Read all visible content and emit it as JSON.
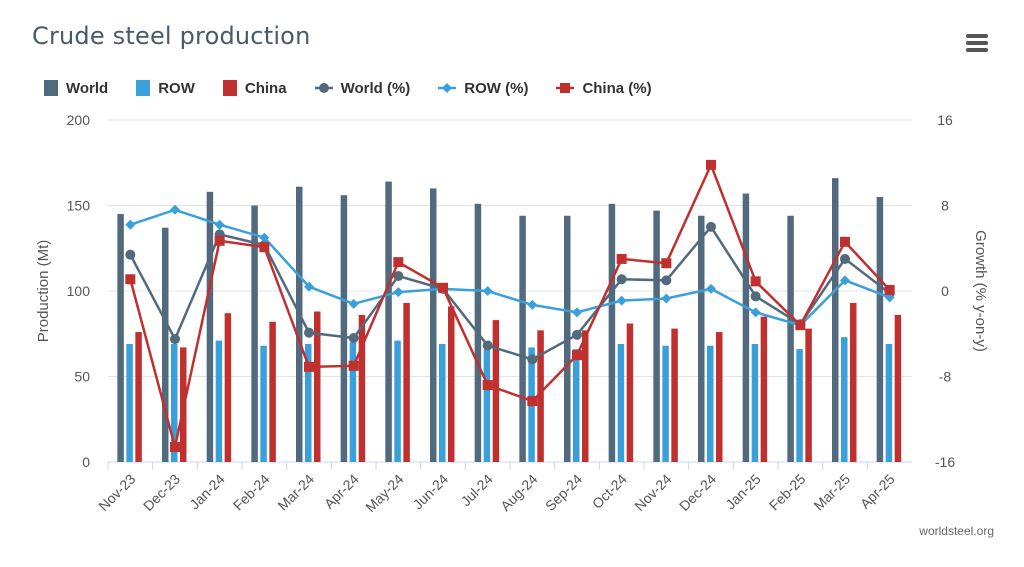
{
  "title": "Crude steel production",
  "credit": "worldsteel.org",
  "menu_icon": "hamburger-menu-icon",
  "colors": {
    "world": "#526a7e",
    "row": "#3aa0dc",
    "china": "#c0302e",
    "grid": "#e4e4e4",
    "axis_text": "#555555"
  },
  "chart_data": {
    "type": "bar",
    "title": "Crude steel production",
    "categories": [
      "Nov-23",
      "Dec-23",
      "Jan-24",
      "Feb-24",
      "Mar-24",
      "Apr-24",
      "May-24",
      "Jun-24",
      "Jul-24",
      "Aug-24",
      "Sep-24",
      "Oct-24",
      "Nov-24",
      "Dec-24",
      "Jan-25",
      "Feb-25",
      "Mar-25",
      "Apr-25"
    ],
    "ylabel": "Production (Mt)",
    "ylim": [
      0,
      200
    ],
    "yticks": [
      0,
      50,
      100,
      150,
      200
    ],
    "y2label": "Growth (% y-on-y)",
    "y2lim": [
      -16,
      16
    ],
    "y2ticks": [
      -16,
      -8,
      0,
      8,
      16
    ],
    "grid": true,
    "legend_position": "top-left",
    "series": [
      {
        "name": "World",
        "kind": "bar",
        "axis": "left",
        "values": [
          145,
          137,
          158,
          150,
          161,
          156,
          164,
          160,
          151,
          144,
          144,
          151,
          147,
          144,
          157,
          144,
          166,
          155
        ]
      },
      {
        "name": "ROW",
        "kind": "bar",
        "axis": "left",
        "values": [
          69,
          69,
          71,
          68,
          69,
          70,
          71,
          69,
          66,
          67,
          66,
          69,
          68,
          68,
          69,
          66,
          73,
          69
        ]
      },
      {
        "name": "China",
        "kind": "bar",
        "axis": "left",
        "values": [
          76,
          67,
          87,
          82,
          88,
          86,
          93,
          91,
          83,
          77,
          77,
          81,
          78,
          76,
          85,
          78,
          93,
          86
        ]
      },
      {
        "name": "World (%)",
        "kind": "line",
        "marker": "circle",
        "axis": "right",
        "values": [
          3.4,
          -4.5,
          5.3,
          4.3,
          -3.9,
          -4.4,
          1.4,
          0.2,
          -5.1,
          -6.4,
          -4.1,
          1.1,
          1.0,
          6.0,
          -0.5,
          -3.1,
          3.0,
          -0.2
        ]
      },
      {
        "name": "ROW (%)",
        "kind": "line",
        "marker": "diamond",
        "axis": "right",
        "values": [
          6.2,
          7.6,
          6.2,
          5.0,
          0.4,
          -1.2,
          -0.1,
          0.2,
          0.0,
          -1.3,
          -2.0,
          -0.9,
          -0.7,
          0.2,
          -2.0,
          -3.2,
          1.0,
          -0.6
        ]
      },
      {
        "name": "China (%)",
        "kind": "line",
        "marker": "square",
        "axis": "right",
        "values": [
          1.1,
          -14.6,
          4.7,
          4.1,
          -7.1,
          -7.0,
          2.7,
          0.3,
          -8.8,
          -10.3,
          -6.0,
          3.0,
          2.6,
          11.8,
          0.9,
          -3.2,
          4.6,
          0.1
        ]
      }
    ]
  }
}
